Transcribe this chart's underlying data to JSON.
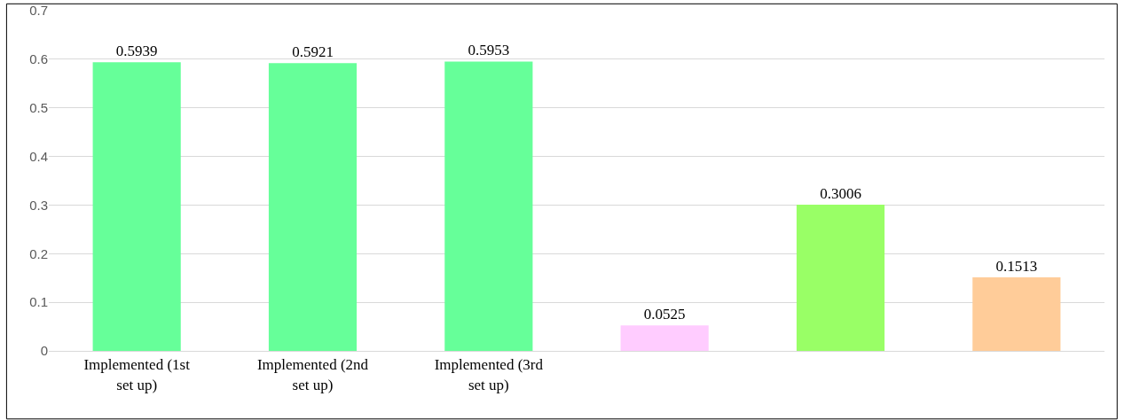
{
  "chart_data": {
    "type": "bar",
    "categories": [
      "Implemented (1st set up)",
      "Implemented (2nd set up)",
      "Implemented (3rd set up)",
      null,
      null,
      null
    ],
    "values": [
      0.5939,
      0.5921,
      0.5953,
      0.0525,
      0.3006,
      0.1513
    ],
    "colors": [
      "#66ff99",
      "#66ff99",
      "#66ff99",
      "#ffccff",
      "#99ff66",
      "#ffcc99"
    ],
    "ylim": [
      0,
      0.7
    ],
    "yticks": [
      0,
      0.1,
      0.2,
      0.3,
      0.4,
      0.5,
      0.6,
      0.7
    ],
    "grid": "y",
    "data_labels": true
  }
}
